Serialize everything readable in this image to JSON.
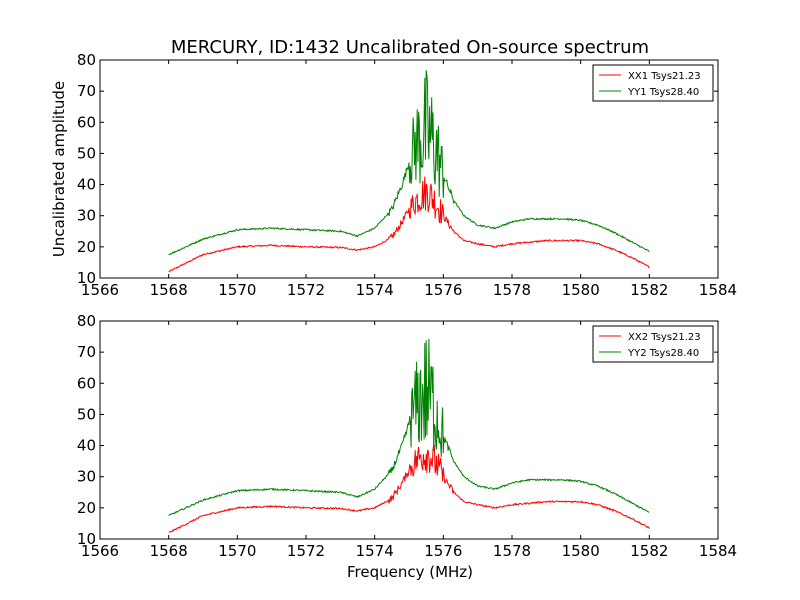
{
  "figure": {
    "title": "MERCURY, ID:1432 Uncalibrated On-source spectrum",
    "xlabel": "Frequency (MHz)",
    "ylabel": "Uncalibrated amplitude"
  },
  "colors": {
    "xx": "#ff0000",
    "yy": "#008000",
    "axes": "#000000",
    "background": "#ffffff"
  },
  "chart_data": [
    {
      "type": "line",
      "xlim": [
        1566,
        1584
      ],
      "ylim": [
        10,
        80
      ],
      "xticks": [
        1566,
        1568,
        1570,
        1572,
        1574,
        1576,
        1578,
        1580,
        1582,
        1584
      ],
      "yticks": [
        10,
        20,
        30,
        40,
        50,
        60,
        70,
        80
      ],
      "legend_position": "top-right",
      "grid": false,
      "series": [
        {
          "name": "XX1 Tsys21.23",
          "color": "#ff0000",
          "x": [
            1568,
            1569,
            1570,
            1571,
            1572,
            1573,
            1573.5,
            1574,
            1574.5,
            1574.8,
            1575,
            1575.2,
            1575.4,
            1575.5,
            1575.6,
            1575.8,
            1576,
            1576.3,
            1576.6,
            1577,
            1577.5,
            1578,
            1578.5,
            1579,
            1579.5,
            1580,
            1580.5,
            1581,
            1581.5,
            1582
          ],
          "values": [
            12,
            17.5,
            20,
            20.5,
            20,
            19.8,
            19,
            20,
            23,
            28,
            32,
            35,
            37,
            37.5,
            37,
            34,
            30,
            25,
            22,
            21,
            20,
            21,
            21.5,
            22,
            22,
            22,
            21,
            19,
            16.5,
            13.5
          ],
          "noise_band_x": [
            1575,
            1576
          ],
          "noise_peak": 44
        },
        {
          "name": "YY1 Tsys28.40",
          "color": "#008000",
          "x": [
            1568,
            1569,
            1570,
            1571,
            1572,
            1573,
            1573.5,
            1574,
            1574.5,
            1574.8,
            1575,
            1575.2,
            1575.4,
            1575.5,
            1575.6,
            1575.8,
            1576,
            1576.3,
            1576.6,
            1577,
            1577.5,
            1578,
            1578.5,
            1579,
            1579.5,
            1580,
            1580.5,
            1581,
            1581.5,
            1582
          ],
          "values": [
            17.5,
            22.5,
            25.5,
            26,
            25.5,
            25,
            23.5,
            26,
            32,
            40,
            47,
            53,
            56,
            57,
            56,
            51,
            43,
            35,
            30,
            27,
            26,
            28,
            29,
            29,
            29,
            28.5,
            27,
            24.5,
            21.5,
            18.5
          ],
          "noise_band_x": [
            1575,
            1576
          ],
          "noise_peak": 78
        }
      ]
    },
    {
      "type": "line",
      "xlim": [
        1566,
        1584
      ],
      "ylim": [
        10,
        80
      ],
      "xticks": [
        1566,
        1568,
        1570,
        1572,
        1574,
        1576,
        1578,
        1580,
        1582,
        1584
      ],
      "yticks": [
        10,
        20,
        30,
        40,
        50,
        60,
        70,
        80
      ],
      "legend_position": "top-right",
      "grid": false,
      "series": [
        {
          "name": "XX2 Tsys21.23",
          "color": "#ff0000",
          "x": [
            1568,
            1569,
            1570,
            1571,
            1572,
            1573,
            1573.5,
            1574,
            1574.5,
            1574.8,
            1575,
            1575.2,
            1575.4,
            1575.5,
            1575.6,
            1575.8,
            1576,
            1576.3,
            1576.6,
            1577,
            1577.5,
            1578,
            1578.5,
            1579,
            1579.5,
            1580,
            1580.5,
            1581,
            1581.5,
            1582
          ],
          "values": [
            12,
            17.5,
            20,
            20.5,
            20,
            19.8,
            19,
            20,
            23,
            28,
            32,
            35,
            37,
            37.5,
            37,
            34,
            30,
            25,
            22,
            21,
            20,
            21,
            21.5,
            22,
            22,
            22,
            21,
            19,
            16.5,
            13.5
          ],
          "noise_band_x": [
            1575,
            1576
          ],
          "noise_peak": 44
        },
        {
          "name": "YY2 Tsys28.40",
          "color": "#008000",
          "x": [
            1568,
            1569,
            1570,
            1571,
            1572,
            1573,
            1573.5,
            1574,
            1574.5,
            1574.8,
            1575,
            1575.2,
            1575.4,
            1575.5,
            1575.6,
            1575.8,
            1576,
            1576.3,
            1576.6,
            1577,
            1577.5,
            1578,
            1578.5,
            1579,
            1579.5,
            1580,
            1580.5,
            1581,
            1581.5,
            1582
          ],
          "values": [
            17.5,
            22.5,
            25.5,
            26,
            25.5,
            25,
            23.5,
            26,
            32,
            40,
            47,
            53,
            56,
            57,
            56,
            51,
            43,
            35,
            30,
            27,
            26,
            28,
            29,
            29,
            29,
            28.5,
            27,
            24.5,
            21.5,
            18.5
          ],
          "noise_band_x": [
            1575,
            1576
          ],
          "noise_peak": 78
        }
      ]
    }
  ]
}
